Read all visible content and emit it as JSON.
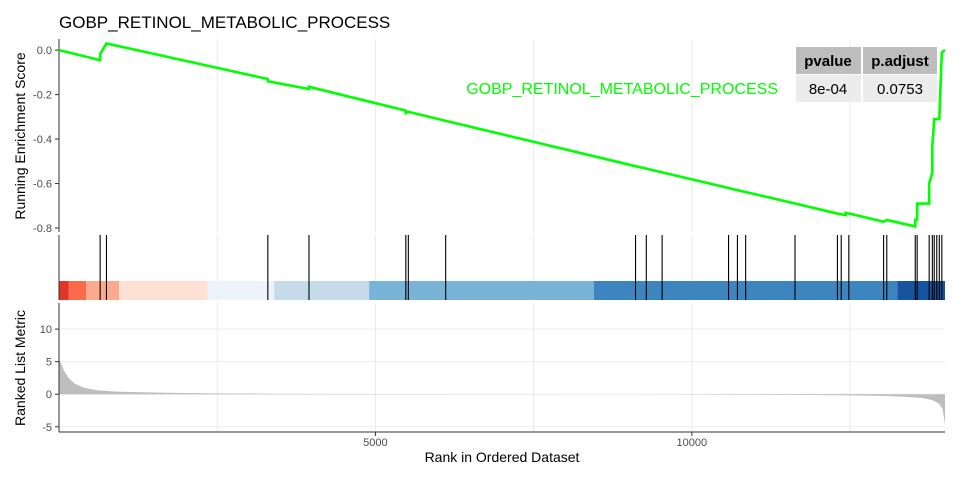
{
  "chart_data": {
    "type": "line",
    "title": "GOBP_RETINOL_METABOLIC_PROCESS",
    "xlabel": "Rank in Ordered Dataset",
    "xlim": [
      0,
      14000
    ],
    "x_ticks": [
      5000,
      10000
    ],
    "colors": {
      "es_line": "#00ff00",
      "hit_line": "#000000",
      "metric_fill": "#bebebe",
      "grid": "#ebebeb",
      "table_header_bg": "#bdbdbd",
      "table_cell_bg": "#ececec"
    },
    "panels": {
      "running_score": {
        "ylabel": "Running Enrichment Score",
        "ylim": [
          -0.8,
          0.05
        ],
        "y_ticks": [
          "0.0",
          "-0.2",
          "-0.4",
          "-0.6",
          "-0.8"
        ],
        "y_tick_values": [
          0,
          -0.2,
          -0.4,
          -0.6,
          -0.8
        ],
        "series": {
          "name": "GOBP_RETINOL_METABOLIC_PROCESS",
          "x": [
            0,
            650,
            650,
            750,
            750,
            3300,
            3300,
            3950,
            3950,
            5480,
            5480,
            5520,
            5520,
            6110,
            6110,
            9110,
            9110,
            9280,
            9280,
            9530,
            9530,
            10580,
            10580,
            10720,
            10720,
            10850,
            10850,
            11630,
            11630,
            12300,
            12300,
            12430,
            12430,
            12580,
            12580,
            13030,
            13030,
            13080,
            13080,
            13530,
            13530,
            13560,
            13560,
            13750,
            13750,
            13800,
            13800,
            13830,
            13830,
            13870,
            13870,
            13910,
            13910,
            13950,
            13950,
            14000
          ],
          "y": [
            0,
            -0.045,
            -0.018,
            0.03,
            0.03,
            -0.13,
            -0.14,
            -0.175,
            -0.165,
            -0.272,
            -0.283,
            -0.277,
            -0.277,
            -0.318,
            -0.318,
            -0.522,
            -0.522,
            -0.533,
            -0.533,
            -0.55,
            -0.55,
            -0.62,
            -0.62,
            -0.63,
            -0.63,
            -0.638,
            -0.638,
            -0.69,
            -0.69,
            -0.735,
            -0.735,
            -0.742,
            -0.732,
            -0.741,
            -0.741,
            -0.772,
            -0.772,
            -0.764,
            -0.764,
            -0.793,
            -0.763,
            -0.763,
            -0.69,
            -0.69,
            -0.6,
            -0.55,
            -0.43,
            -0.31,
            -0.31,
            -0.31,
            -0.31,
            -0.31,
            -0.31,
            -0.01,
            -0.01,
            0.0
          ]
        }
      },
      "hits": {
        "positions": [
          650,
          750,
          3300,
          3950,
          5480,
          5520,
          6110,
          9110,
          9280,
          9530,
          10580,
          10720,
          10850,
          11630,
          12300,
          12360,
          12480,
          13030,
          13080,
          13530,
          13560,
          13750,
          13800,
          13830,
          13870,
          13910,
          13950
        ],
        "color_bands": [
          {
            "from": 0,
            "to": 150,
            "color": "#e0352b"
          },
          {
            "from": 150,
            "to": 430,
            "color": "#fb6a4a"
          },
          {
            "from": 430,
            "to": 950,
            "color": "#fcaa8e"
          },
          {
            "from": 950,
            "to": 2350,
            "color": "#fee1d4"
          },
          {
            "from": 2350,
            "to": 3400,
            "color": "#eef3fb"
          },
          {
            "from": 3400,
            "to": 4900,
            "color": "#c6dbe9"
          },
          {
            "from": 4900,
            "to": 8450,
            "color": "#78b3d8"
          },
          {
            "from": 8450,
            "to": 13250,
            "color": "#3d85bf"
          },
          {
            "from": 13250,
            "to": 14000,
            "color": "#1853a0"
          }
        ]
      },
      "ranked_metric": {
        "ylabel": "Ranked List Metric",
        "ylim": [
          -5.8,
          14
        ],
        "y_ticks": [
          "10",
          "5",
          "0",
          "-5"
        ],
        "y_tick_values": [
          10,
          5,
          0,
          -5
        ],
        "x": [
          0,
          30,
          80,
          150,
          250,
          400,
          600,
          900,
          1300,
          1800,
          2500,
          3500,
          5000,
          6500,
          8000,
          9000,
          9700,
          10500,
          11500,
          12300,
          13000,
          13400,
          13650,
          13800,
          13900,
          13960,
          14000
        ],
        "y": [
          5.5,
          4.8,
          3.6,
          2.5,
          1.6,
          1.0,
          0.6,
          0.4,
          0.3,
          0.2,
          0.12,
          0.06,
          0.03,
          0.01,
          0.0,
          -0.01,
          -0.03,
          -0.06,
          -0.1,
          -0.15,
          -0.25,
          -0.4,
          -0.6,
          -0.9,
          -1.4,
          -2.2,
          -4.7
        ]
      }
    },
    "stats_table": {
      "headers": [
        "pvalue",
        "p.adjust"
      ],
      "values": [
        "8e-04",
        "0.0753"
      ]
    }
  }
}
